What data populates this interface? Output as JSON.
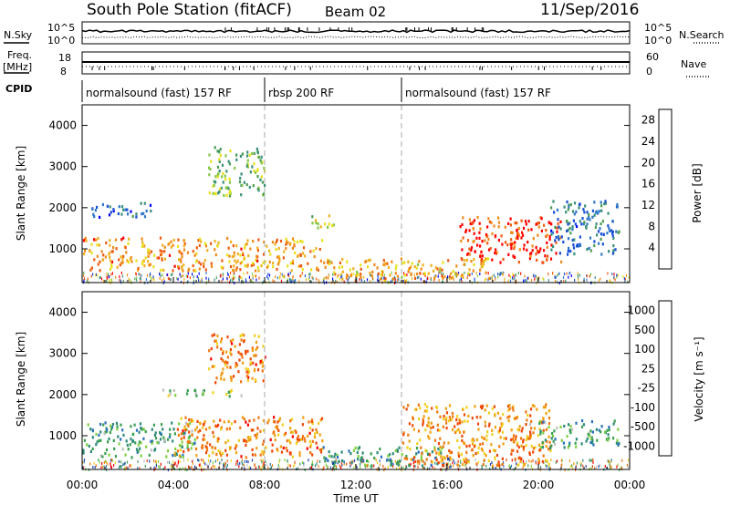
{
  "header": {
    "station": "South Pole Station (fitACF)",
    "beam": "Beam 02",
    "date": "11/Sep/2016"
  },
  "top_panels": {
    "nsky_label": "N.Sky",
    "nsky_ticks": [
      "10^5",
      "10^0"
    ],
    "nsearch_label": "N.Search",
    "nsearch_ticks": [
      "10^5",
      "10^0"
    ],
    "freq_label": "Freq.",
    "freq_unit": "[MHz]",
    "freq_ticks": [
      "18",
      "8"
    ],
    "nave_label": "Nave",
    "nave_ticks": [
      "60",
      "0"
    ],
    "cpid_label": "CPID"
  },
  "cpid_segments": [
    {
      "label": "normalsound (fast) 157 RF",
      "start_h": 0,
      "end_h": 8
    },
    {
      "label": "rbsp 200 RF",
      "start_h": 8,
      "end_h": 14
    },
    {
      "label": "normalsound (fast) 157 RF",
      "start_h": 14,
      "end_h": 24
    }
  ],
  "colors": {
    "power_scale": [
      "#0000ff",
      "#1a4fd6",
      "#2f77c8",
      "#3a8f7a",
      "#4b9d55",
      "#86c84a",
      "#e8e018",
      "#f0b020",
      "#f08a18",
      "#f05a10",
      "#ff0000"
    ],
    "velocity_scale": [
      "#2040b0",
      "#2a70c0",
      "#2e8a7a",
      "#3aa050",
      "#80d040",
      "#c0c0c0",
      "#f0d020",
      "#f0a010",
      "#f07810",
      "#f04808",
      "#ff0000"
    ],
    "dash_line": "#aaaaaa"
  },
  "chart_data": [
    {
      "type": "heatmap",
      "title": "",
      "ylabel": "Slant Range [km]",
      "xlabel": "Time UT",
      "x_ticks": [
        "00:00",
        "04:00",
        "08:00",
        "12:00",
        "16:00",
        "20:00",
        "00:00"
      ],
      "y_ticks": [
        "1000",
        "2000",
        "3000",
        "4000"
      ],
      "xlim_hours": [
        0,
        24
      ],
      "ylim_km": [
        180,
        4500
      ],
      "colorbar": {
        "label": "Power [dB]",
        "ticks": [
          "4",
          "8",
          "12",
          "16",
          "20",
          "24",
          "28"
        ],
        "range": [
          0,
          30
        ]
      },
      "regions": [
        {
          "t0": 0.0,
          "t1": 10.5,
          "r0": 500,
          "r1": 1300,
          "level": 0.75
        },
        {
          "t0": 0.3,
          "t1": 3.0,
          "r0": 1800,
          "r1": 2150,
          "level": 0.2
        },
        {
          "t0": 5.5,
          "t1": 8.0,
          "r0": 2300,
          "r1": 3500,
          "level": 0.45
        },
        {
          "t0": 10.0,
          "t1": 11.0,
          "r0": 1500,
          "r1": 1850,
          "level": 0.6
        },
        {
          "t0": 10.5,
          "t1": 18.0,
          "r0": 300,
          "r1": 800,
          "level": 0.7
        },
        {
          "t0": 16.5,
          "t1": 21.0,
          "r0": 700,
          "r1": 1800,
          "level": 0.9
        },
        {
          "t0": 20.5,
          "t1": 23.5,
          "r0": 900,
          "r1": 2200,
          "level": 0.25
        }
      ],
      "markers_hours": [
        8,
        14
      ]
    },
    {
      "type": "heatmap",
      "title": "",
      "ylabel": "Slant Range [km]",
      "xlabel": "Time UT",
      "x_ticks": [
        "00:00",
        "04:00",
        "08:00",
        "12:00",
        "16:00",
        "20:00",
        "00:00"
      ],
      "y_ticks": [
        "1000",
        "2000",
        "3000",
        "4000"
      ],
      "xlim_hours": [
        0,
        24
      ],
      "ylim_km": [
        180,
        4500
      ],
      "colorbar": {
        "label": "Velocity [m s⁻¹]",
        "ticks": [
          "1000",
          "500",
          "100",
          "25",
          "-25",
          "-100",
          "-500",
          "-1000"
        ],
        "range": [
          -1000,
          1000
        ]
      },
      "regions": [
        {
          "t0": 0.0,
          "t1": 5.0,
          "r0": 500,
          "r1": 1350,
          "level": 0.3
        },
        {
          "t0": 4.0,
          "t1": 10.5,
          "r0": 500,
          "r1": 1500,
          "level": 0.75
        },
        {
          "t0": 3.5,
          "t1": 7.0,
          "r0": 1950,
          "r1": 2150,
          "level": 0.45
        },
        {
          "t0": 5.5,
          "t1": 8.0,
          "r0": 2300,
          "r1": 3500,
          "level": 0.75
        },
        {
          "t0": 10.5,
          "t1": 16.0,
          "r0": 300,
          "r1": 750,
          "level": 0.25
        },
        {
          "t0": 14.0,
          "t1": 20.5,
          "r0": 300,
          "r1": 1800,
          "level": 0.72
        },
        {
          "t0": 20.0,
          "t1": 23.5,
          "r0": 700,
          "r1": 1400,
          "level": 0.3
        }
      ],
      "markers_hours": [
        8,
        14
      ]
    }
  ]
}
